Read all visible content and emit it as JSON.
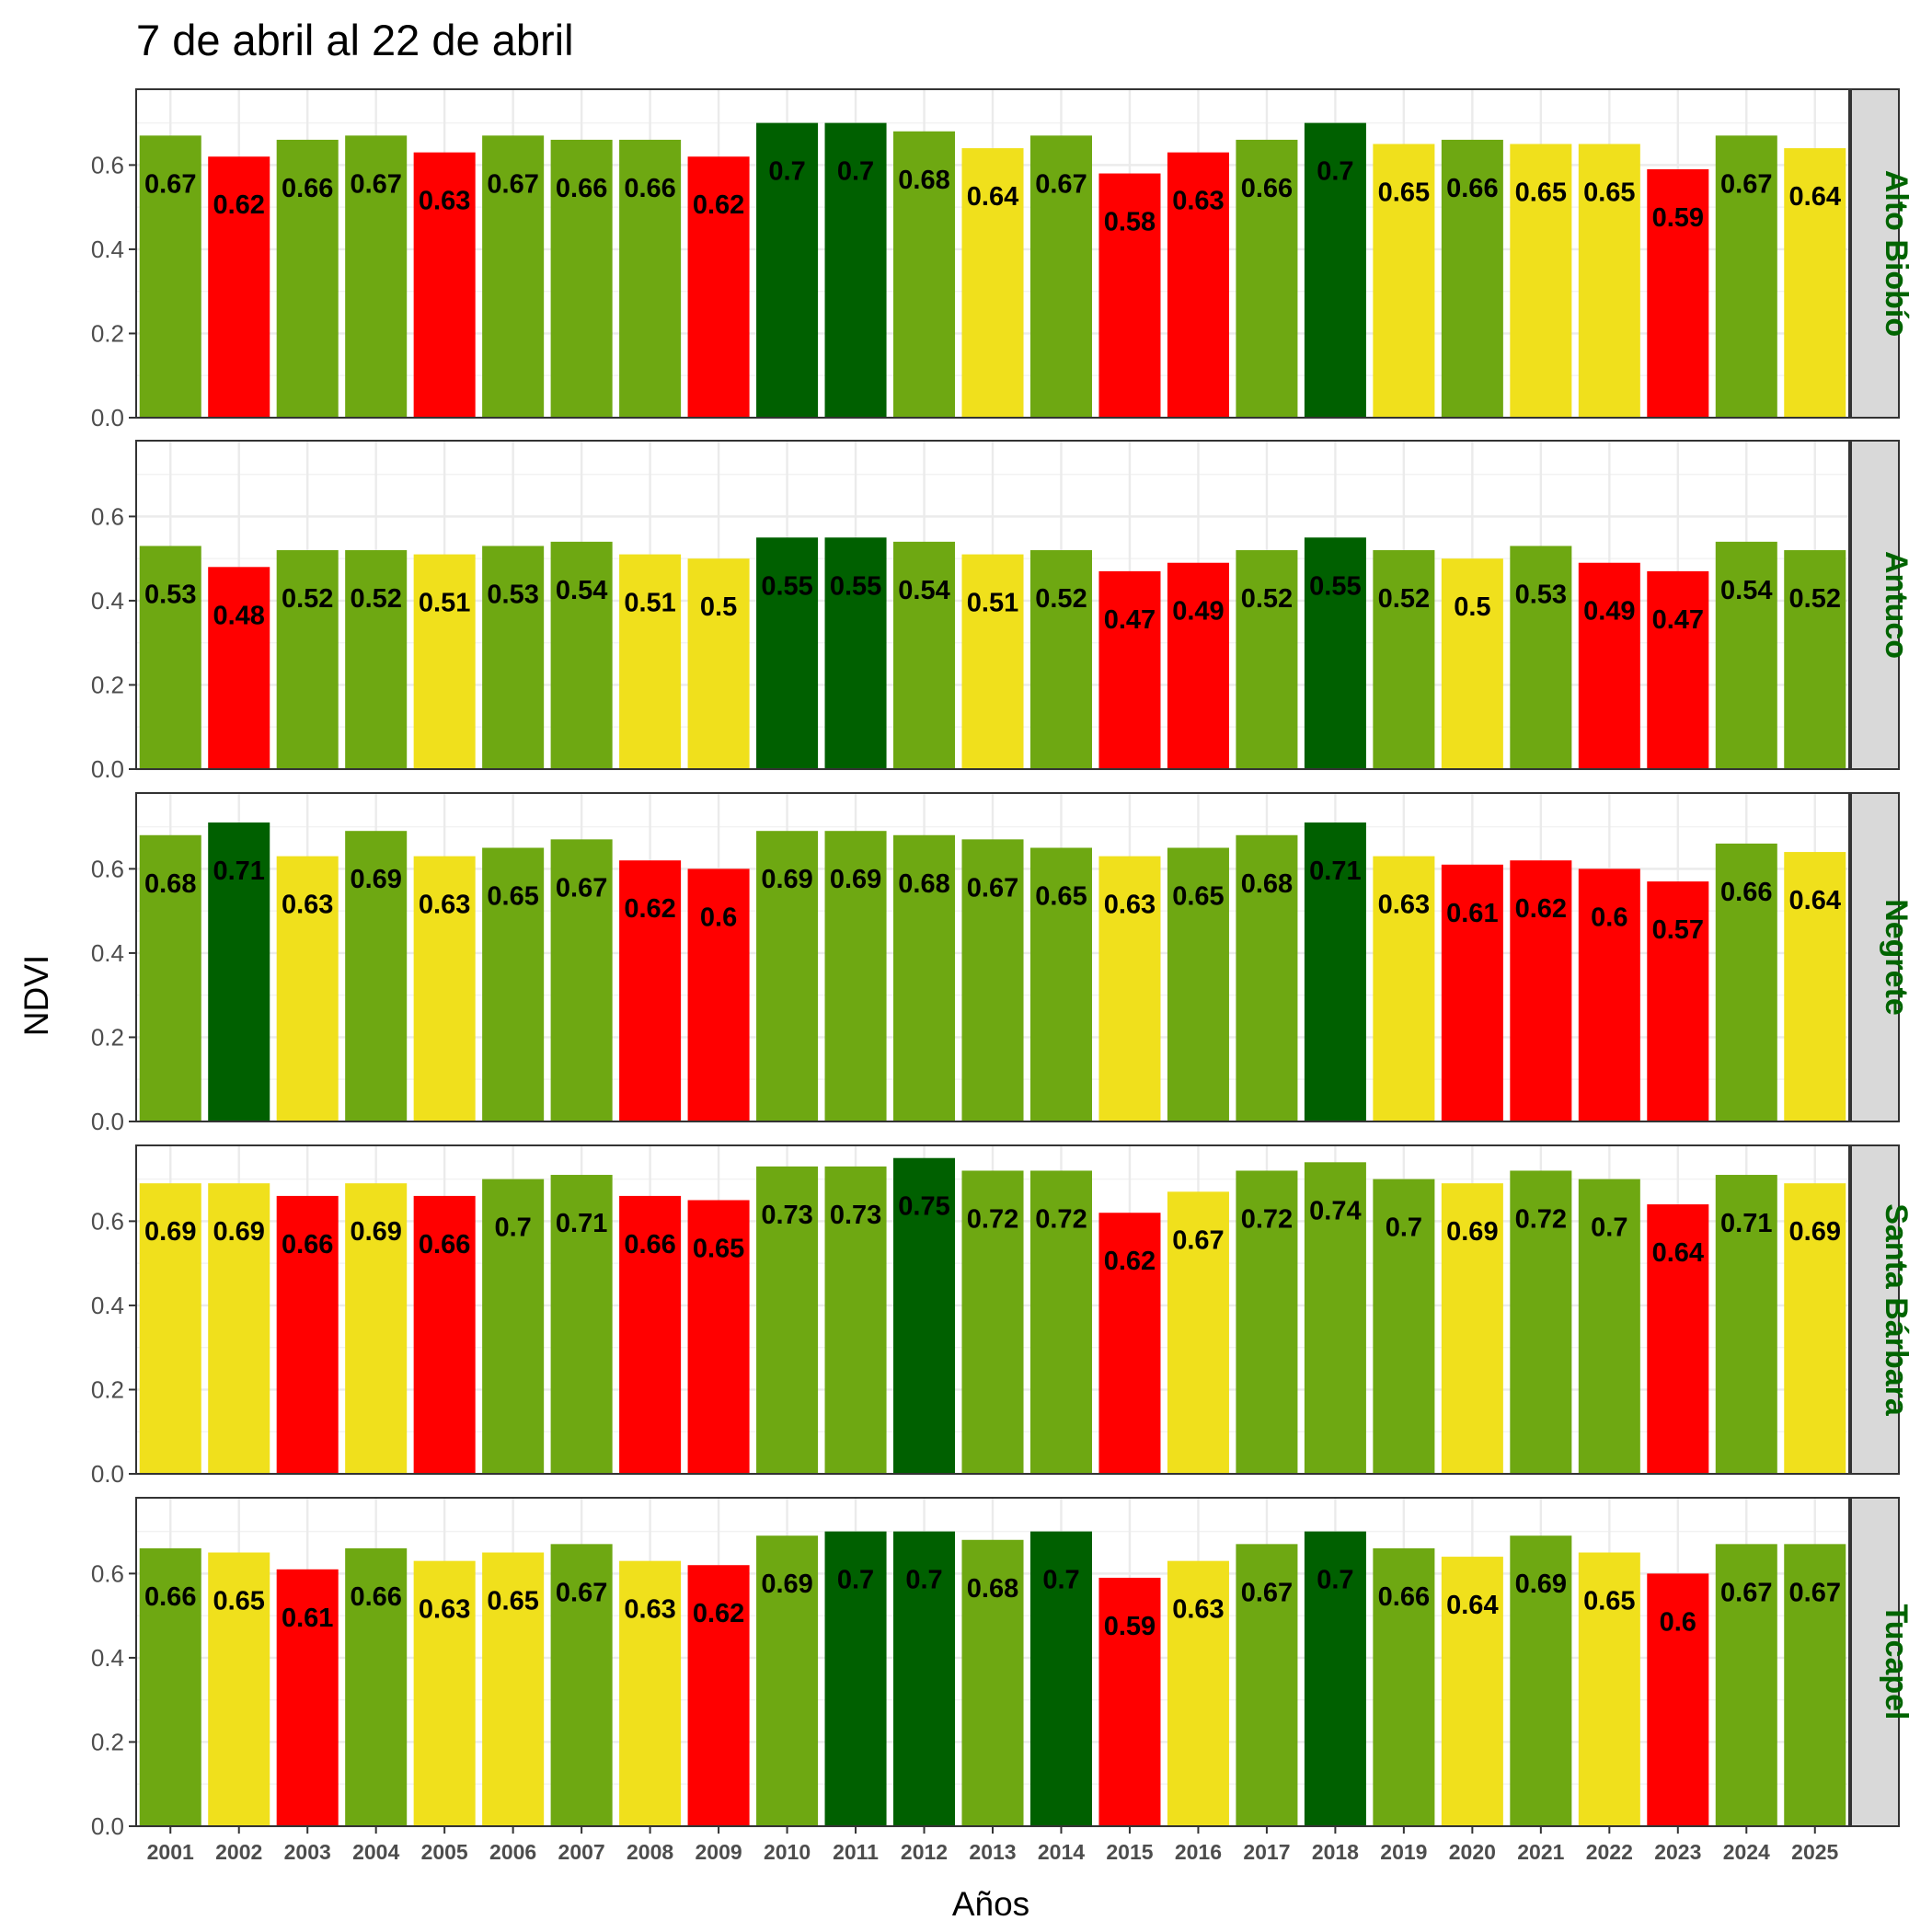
{
  "chart_data": {
    "type": "bar",
    "title": "7 de abril al 22 de abril",
    "xlabel": "Años",
    "ylabel": "NDVI",
    "ylim": [
      0,
      0.78
    ],
    "yticks": [
      "0.0",
      "0.2",
      "0.4",
      "0.6"
    ],
    "grid": true,
    "colors": {
      "dark_green": "#006000",
      "green": "#6ea812",
      "yellow": "#f0e01c",
      "red": "#ff0000"
    },
    "categories": [
      "2001",
      "2002",
      "2003",
      "2004",
      "2005",
      "2006",
      "2007",
      "2008",
      "2009",
      "2010",
      "2011",
      "2012",
      "2013",
      "2014",
      "2015",
      "2016",
      "2017",
      "2018",
      "2019",
      "2020",
      "2021",
      "2022",
      "2023",
      "2024",
      "2025"
    ],
    "panels": [
      {
        "name": "Alto Biobío",
        "values": [
          0.67,
          0.62,
          0.66,
          0.67,
          0.63,
          0.67,
          0.66,
          0.66,
          0.62,
          0.7,
          0.7,
          0.68,
          0.64,
          0.67,
          0.58,
          0.63,
          0.66,
          0.7,
          0.65,
          0.66,
          0.65,
          0.65,
          0.59,
          0.67,
          0.64
        ],
        "classes": [
          "green",
          "red",
          "green",
          "green",
          "red",
          "green",
          "green",
          "green",
          "red",
          "dark_green",
          "dark_green",
          "green",
          "yellow",
          "green",
          "red",
          "red",
          "green",
          "dark_green",
          "yellow",
          "green",
          "yellow",
          "yellow",
          "red",
          "green",
          "yellow"
        ]
      },
      {
        "name": "Antuco",
        "values": [
          0.53,
          0.48,
          0.52,
          0.52,
          0.51,
          0.53,
          0.54,
          0.51,
          0.5,
          0.55,
          0.55,
          0.54,
          0.51,
          0.52,
          0.47,
          0.49,
          0.52,
          0.55,
          0.52,
          0.5,
          0.53,
          0.49,
          0.47,
          0.54,
          0.52
        ],
        "classes": [
          "green",
          "red",
          "green",
          "green",
          "yellow",
          "green",
          "green",
          "yellow",
          "yellow",
          "dark_green",
          "dark_green",
          "green",
          "yellow",
          "green",
          "red",
          "red",
          "green",
          "dark_green",
          "green",
          "yellow",
          "green",
          "red",
          "red",
          "green",
          "green"
        ]
      },
      {
        "name": "Negrete",
        "values": [
          0.68,
          0.71,
          0.63,
          0.69,
          0.63,
          0.65,
          0.67,
          0.62,
          0.6,
          0.69,
          0.69,
          0.68,
          0.67,
          0.65,
          0.63,
          0.65,
          0.68,
          0.71,
          0.63,
          0.61,
          0.62,
          0.6,
          0.57,
          0.66,
          0.64
        ],
        "classes": [
          "green",
          "dark_green",
          "yellow",
          "green",
          "yellow",
          "green",
          "green",
          "red",
          "red",
          "green",
          "green",
          "green",
          "green",
          "green",
          "yellow",
          "green",
          "green",
          "dark_green",
          "yellow",
          "red",
          "red",
          "red",
          "red",
          "green",
          "yellow"
        ]
      },
      {
        "name": "Santa Bárbara",
        "values": [
          0.69,
          0.69,
          0.66,
          0.69,
          0.66,
          0.7,
          0.71,
          0.66,
          0.65,
          0.73,
          0.73,
          0.75,
          0.72,
          0.72,
          0.62,
          0.67,
          0.72,
          0.74,
          0.7,
          0.69,
          0.72,
          0.7,
          0.64,
          0.71,
          0.69
        ],
        "classes": [
          "yellow",
          "yellow",
          "red",
          "yellow",
          "red",
          "green",
          "green",
          "red",
          "red",
          "green",
          "green",
          "dark_green",
          "green",
          "green",
          "red",
          "yellow",
          "green",
          "green",
          "green",
          "yellow",
          "green",
          "green",
          "red",
          "green",
          "yellow"
        ]
      },
      {
        "name": "Tucapel",
        "values": [
          0.66,
          0.65,
          0.61,
          0.66,
          0.63,
          0.65,
          0.67,
          0.63,
          0.62,
          0.69,
          0.7,
          0.7,
          0.68,
          0.7,
          0.59,
          0.63,
          0.67,
          0.7,
          0.66,
          0.64,
          0.69,
          0.65,
          0.6,
          0.67,
          0.67
        ],
        "classes": [
          "green",
          "yellow",
          "red",
          "green",
          "yellow",
          "yellow",
          "green",
          "yellow",
          "red",
          "green",
          "dark_green",
          "dark_green",
          "green",
          "dark_green",
          "red",
          "yellow",
          "green",
          "dark_green",
          "green",
          "yellow",
          "green",
          "yellow",
          "red",
          "green",
          "green"
        ]
      }
    ]
  }
}
